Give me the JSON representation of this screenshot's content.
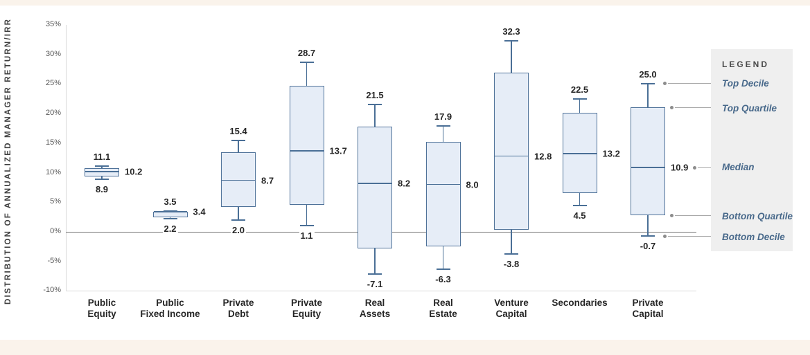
{
  "page": {
    "background": "#ffffff",
    "top_bar_color": "#faf3eb",
    "bottom_bar_color": "#faf3eb"
  },
  "chart_data": {
    "type": "box",
    "title": "",
    "ylabel": "DISTRIBUTION OF ANNUALIZED MANAGER RETURN/IRR",
    "xlabel": "",
    "unit": "%",
    "ylim": [
      -10,
      35
    ],
    "ytick_step": 5,
    "grid": false,
    "legend_position": "right",
    "colors": {
      "box_fill": "#e6edf7",
      "box_border": "#4f7299",
      "whisker": "#4a6f96",
      "zero_line": "#747474",
      "axis_line": "#d9d9d9",
      "tick_text": "#595959",
      "value_text": "#262626",
      "legend_bg": "#efefef",
      "legend_text": "#47688a",
      "connector": "#a8a8a8"
    },
    "categories": [
      {
        "label": [
          "Public",
          "Equity"
        ],
        "top_decile": 11.1,
        "top_quartile": 10.8,
        "median": 10.2,
        "bottom_quartile": 9.4,
        "bottom_decile": 8.9
      },
      {
        "label": [
          "Public",
          "Fixed Income"
        ],
        "top_decile": 3.5,
        "top_quartile": 3.4,
        "median": 3.4,
        "bottom_quartile": 2.4,
        "bottom_decile": 2.2
      },
      {
        "label": [
          "Private",
          "Debt"
        ],
        "top_decile": 15.4,
        "top_quartile": 13.5,
        "median": 8.7,
        "bottom_quartile": 4.2,
        "bottom_decile": 2.0
      },
      {
        "label": [
          "Private",
          "Equity"
        ],
        "top_decile": 28.7,
        "top_quartile": 24.7,
        "median": 13.7,
        "bottom_quartile": 4.6,
        "bottom_decile": 1.1
      },
      {
        "label": [
          "Real",
          "Assets"
        ],
        "top_decile": 21.5,
        "top_quartile": 17.8,
        "median": 8.2,
        "bottom_quartile": -2.8,
        "bottom_decile": -7.1
      },
      {
        "label": [
          "Real",
          "Estate"
        ],
        "top_decile": 17.9,
        "top_quartile": 15.2,
        "median": 8.0,
        "bottom_quartile": -2.5,
        "bottom_decile": -6.3
      },
      {
        "label": [
          "Venture",
          "Capital"
        ],
        "top_decile": 32.3,
        "top_quartile": 26.9,
        "median": 12.8,
        "bottom_quartile": 0.4,
        "bottom_decile": -3.8
      },
      {
        "label": [
          "Secondaries"
        ],
        "top_decile": 22.5,
        "top_quartile": 20.1,
        "median": 13.2,
        "bottom_quartile": 6.6,
        "bottom_decile": 4.5
      },
      {
        "label": [
          "Private",
          "Capital"
        ],
        "top_decile": 25.0,
        "top_quartile": 21.1,
        "median": 10.9,
        "bottom_quartile": 2.8,
        "bottom_decile": -0.7
      }
    ],
    "labeled_stats_per_category": [
      "top_decile",
      "median",
      "bottom_decile"
    ],
    "legend": {
      "header": "LEGEND",
      "items": [
        "Top Decile",
        "Top Quartile",
        "Median",
        "Bottom Quartile",
        "Bottom Decile"
      ]
    }
  }
}
